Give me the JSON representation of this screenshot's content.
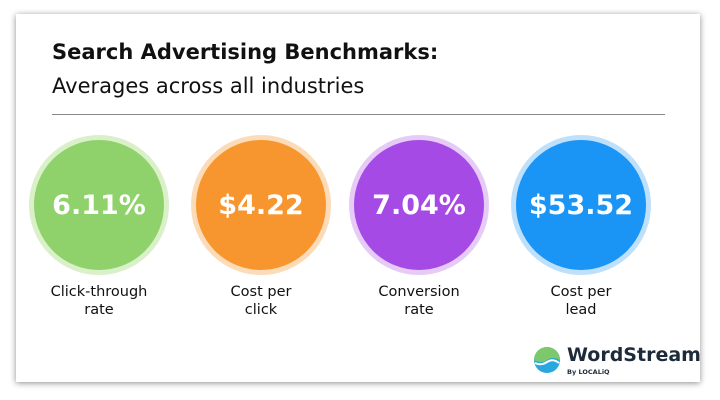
{
  "header": {
    "title": "Search Advertising Benchmarks:",
    "subtitle": "Averages across all industries"
  },
  "metrics": [
    {
      "value": "6.11%",
      "label_lines": [
        "Click-through",
        "rate"
      ],
      "color": "#8fd16a",
      "ring": "#d9f0c9"
    },
    {
      "value": "$4.22",
      "label_lines": [
        "Cost per",
        "click"
      ],
      "color": "#f7962f",
      "ring": "#fcdcb8"
    },
    {
      "value": "7.04%",
      "label_lines": [
        "Conversion",
        "rate"
      ],
      "color": "#a64ae6",
      "ring": "#e6cbf7"
    },
    {
      "value": "$53.52",
      "label_lines": [
        "Cost per",
        "lead"
      ],
      "color": "#1a95f5",
      "ring": "#bfe0fb"
    }
  ],
  "brand": {
    "name": "WordStream",
    "tagline": "By LOCALiQ"
  }
}
